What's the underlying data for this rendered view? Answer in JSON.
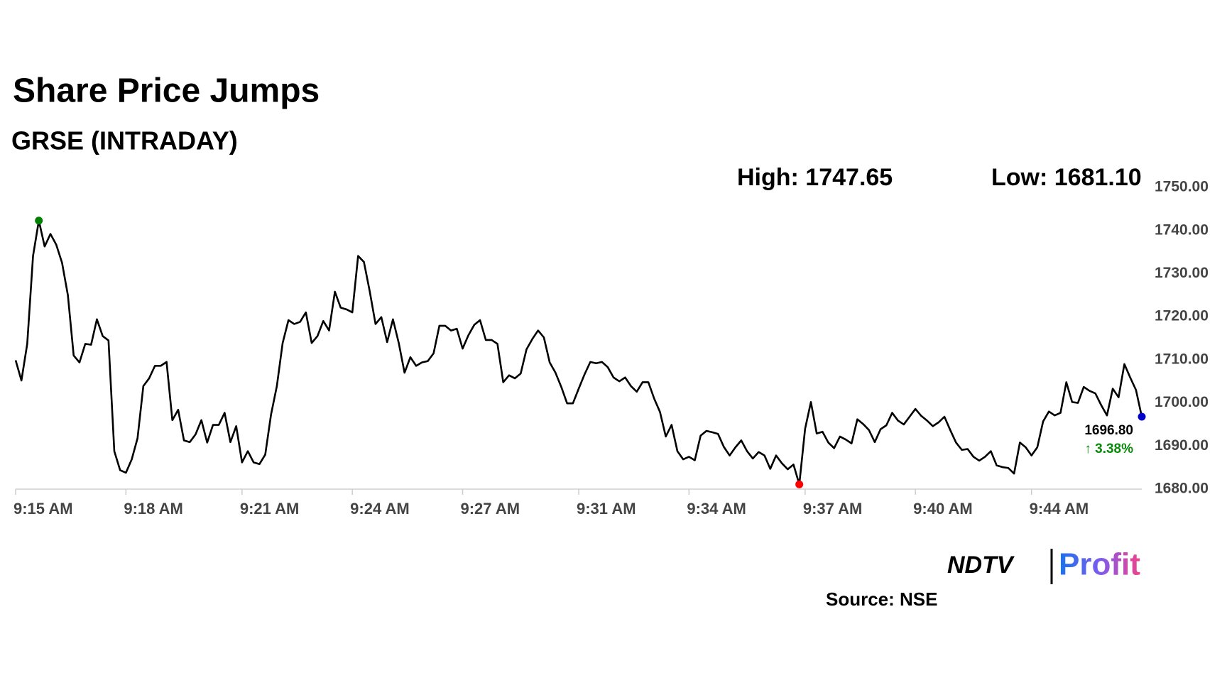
{
  "chart_data": {
    "type": "line",
    "title": "Share Price Jumps",
    "subtitle": "GRSE (INTRADAY)",
    "high_label": "High: 1747.65",
    "low_label": "Low: 1681.10",
    "last_label": "1696.80",
    "change_label": "↑ 3.38%",
    "source": "Source: NSE",
    "logo": {
      "brand": "NDTV",
      "product": "Profit"
    },
    "color": "#000000",
    "high_color": "#008000",
    "low_color": "#ff0000",
    "last_color": "#0000cc",
    "categories": [
      "9:15 AM",
      null,
      null,
      null,
      null,
      null,
      null,
      null,
      null,
      null,
      null,
      null,
      null,
      null,
      null,
      null,
      null,
      null,
      null,
      "9:18 AM",
      null,
      null,
      null,
      null,
      null,
      null,
      null,
      null,
      null,
      null,
      null,
      null,
      null,
      null,
      null,
      null,
      null,
      null,
      null,
      "9:21 AM",
      null,
      null,
      null,
      null,
      null,
      null,
      null,
      null,
      null,
      null,
      null,
      null,
      null,
      null,
      null,
      null,
      null,
      null,
      "9:24 AM",
      null,
      null,
      null,
      null,
      null,
      null,
      null,
      null,
      null,
      null,
      null,
      null,
      null,
      null,
      null,
      null,
      null,
      null,
      "9:27 AM",
      null,
      null,
      null,
      null,
      null,
      null,
      null,
      null,
      null,
      null,
      null,
      null,
      null,
      null,
      null,
      null,
      null,
      null,
      null,
      "9:31 AM",
      null,
      null,
      null,
      null,
      null,
      null,
      null,
      null,
      null,
      null,
      null,
      null,
      null,
      null,
      null,
      null,
      null,
      null,
      "9:34 AM",
      null,
      null,
      null,
      null,
      null,
      null,
      null,
      null,
      null,
      null,
      null,
      null,
      null,
      null,
      null,
      null,
      null,
      null,
      null,
      "9:37 AM",
      null,
      null,
      null,
      null,
      null,
      null,
      null,
      null,
      null,
      null,
      null,
      null,
      null,
      null,
      null,
      null,
      null,
      null,
      "9:40 AM",
      null,
      null,
      null,
      null,
      null,
      null,
      null,
      null,
      null,
      null,
      null,
      null,
      null,
      null,
      null,
      null,
      null,
      null,
      null,
      "9:44 AM",
      null,
      null,
      null,
      null,
      null,
      null,
      null,
      null,
      null,
      null,
      null,
      null,
      null,
      null,
      null,
      null,
      null,
      null,
      null
    ],
    "values": [
      1709.9,
      1705.2,
      1713.7,
      1734.1,
      1742.3,
      1736.3,
      1739.2,
      1736.7,
      1732.5,
      1725.0,
      1711.0,
      1709.4,
      1713.7,
      1713.5,
      1719.4,
      1715.5,
      1714.5,
      1688.8,
      1684.4,
      1683.8,
      1686.9,
      1691.8,
      1703.9,
      1705.7,
      1708.6,
      1708.6,
      1709.5,
      1696.0,
      1698.4,
      1691.3,
      1690.9,
      1692.7,
      1696.0,
      1690.8,
      1694.9,
      1694.9,
      1697.7,
      1690.9,
      1694.6,
      1686.2,
      1688.8,
      1686.2,
      1685.8,
      1688.0,
      1697.3,
      1703.9,
      1713.9,
      1719.2,
      1718.3,
      1718.8,
      1721.0,
      1713.9,
      1715.5,
      1719.0,
      1716.8,
      1725.8,
      1722.1,
      1721.7,
      1721.0,
      1734.1,
      1732.7,
      1725.9,
      1718.3,
      1719.9,
      1714.1,
      1719.4,
      1713.9,
      1707.0,
      1710.6,
      1708.6,
      1709.4,
      1709.7,
      1711.5,
      1717.9,
      1717.9,
      1716.8,
      1717.2,
      1712.6,
      1715.7,
      1718.1,
      1719.2,
      1714.6,
      1714.6,
      1713.7,
      1704.8,
      1706.4,
      1705.7,
      1706.8,
      1712.4,
      1714.8,
      1716.8,
      1715.2,
      1709.4,
      1707.0,
      1703.7,
      1699.9,
      1699.9,
      1703.3,
      1706.6,
      1709.5,
      1709.2,
      1709.5,
      1708.3,
      1705.9,
      1705.0,
      1705.9,
      1703.9,
      1702.6,
      1704.8,
      1704.8,
      1701.0,
      1697.9,
      1692.2,
      1694.9,
      1688.8,
      1686.9,
      1687.5,
      1686.7,
      1692.4,
      1693.5,
      1693.2,
      1692.8,
      1689.8,
      1687.8,
      1689.7,
      1691.3,
      1688.8,
      1687.1,
      1688.6,
      1687.8,
      1684.7,
      1687.8,
      1686.0,
      1684.6,
      1685.7,
      1681.1,
      1694.0,
      1700.2,
      1692.9,
      1693.3,
      1690.8,
      1689.5,
      1692.2,
      1691.5,
      1690.6,
      1696.2,
      1695.1,
      1693.7,
      1690.9,
      1693.9,
      1694.8,
      1697.7,
      1695.9,
      1695.0,
      1696.8,
      1698.6,
      1697.0,
      1695.9,
      1694.6,
      1695.5,
      1696.8,
      1693.7,
      1690.8,
      1689.1,
      1689.3,
      1687.5,
      1686.6,
      1687.5,
      1688.8,
      1685.5,
      1685.1,
      1684.9,
      1683.6,
      1690.8,
      1689.7,
      1687.8,
      1689.7,
      1695.7,
      1698.0,
      1697.1,
      1697.7,
      1704.8,
      1700.2,
      1700.0,
      1703.7,
      1702.8,
      1702.2,
      1699.5,
      1697.1,
      1703.3,
      1701.3,
      1709.0,
      1705.9,
      1703.0,
      1696.8
    ],
    "ylim": [
      1680,
      1750
    ],
    "yticks": [
      {
        "value": 1680,
        "label": "1680.00"
      },
      {
        "value": 1690,
        "label": "1690.00"
      },
      {
        "value": 1700,
        "label": "1700.00"
      },
      {
        "value": 1710,
        "label": "1710.00"
      },
      {
        "value": 1720,
        "label": "1720.00"
      },
      {
        "value": 1730,
        "label": "1730.00"
      },
      {
        "value": 1740,
        "label": "1740.00"
      },
      {
        "value": 1750,
        "label": "1750.00"
      }
    ],
    "grid": false
  }
}
